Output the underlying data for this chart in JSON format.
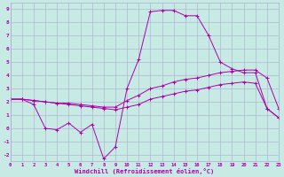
{
  "xlabel": "Windchill (Refroidissement éolien,°C)",
  "background_color": "#c8eae4",
  "grid_color": "#aaaacc",
  "line_color": "#aa00aa",
  "x_ticks": [
    0,
    1,
    2,
    3,
    4,
    5,
    6,
    7,
    8,
    9,
    10,
    11,
    12,
    13,
    14,
    15,
    16,
    17,
    18,
    19,
    20,
    21,
    22,
    23
  ],
  "y_ticks": [
    -2,
    -1,
    0,
    1,
    2,
    3,
    4,
    5,
    6,
    7,
    8,
    9
  ],
  "xlim": [
    0,
    23
  ],
  "ylim": [
    -2.5,
    9.5
  ],
  "line1_x": [
    0,
    1,
    2,
    3,
    4,
    5,
    6,
    7,
    8,
    9,
    10,
    11,
    12,
    13,
    14,
    15,
    16,
    17,
    18,
    19,
    20,
    21,
    22,
    23
  ],
  "line1_y": [
    2.2,
    2.2,
    1.8,
    0.0,
    -0.1,
    0.4,
    -0.3,
    0.3,
    -2.3,
    -1.4,
    3.0,
    5.2,
    8.8,
    8.9,
    8.9,
    8.5,
    8.5,
    7.0,
    5.0,
    4.5,
    4.2,
    4.2,
    1.5,
    0.8
  ],
  "line2_x": [
    0,
    1,
    2,
    3,
    4,
    5,
    6,
    7,
    8,
    9,
    10,
    11,
    12,
    13,
    14,
    15,
    16,
    17,
    18,
    19,
    20,
    21,
    22,
    23
  ],
  "line2_y": [
    2.2,
    2.2,
    2.1,
    2.0,
    1.9,
    1.9,
    1.8,
    1.7,
    1.6,
    1.6,
    2.1,
    2.5,
    3.0,
    3.2,
    3.5,
    3.7,
    3.8,
    4.0,
    4.2,
    4.3,
    4.4,
    4.4,
    3.8,
    1.5
  ],
  "line3_x": [
    0,
    1,
    2,
    3,
    4,
    5,
    6,
    7,
    8,
    9,
    10,
    11,
    12,
    13,
    14,
    15,
    16,
    17,
    18,
    19,
    20,
    21,
    22,
    23
  ],
  "line3_y": [
    2.2,
    2.2,
    2.1,
    2.0,
    1.9,
    1.8,
    1.7,
    1.6,
    1.5,
    1.4,
    1.6,
    1.8,
    2.2,
    2.4,
    2.6,
    2.8,
    2.9,
    3.1,
    3.3,
    3.4,
    3.5,
    3.4,
    1.5,
    0.8
  ]
}
